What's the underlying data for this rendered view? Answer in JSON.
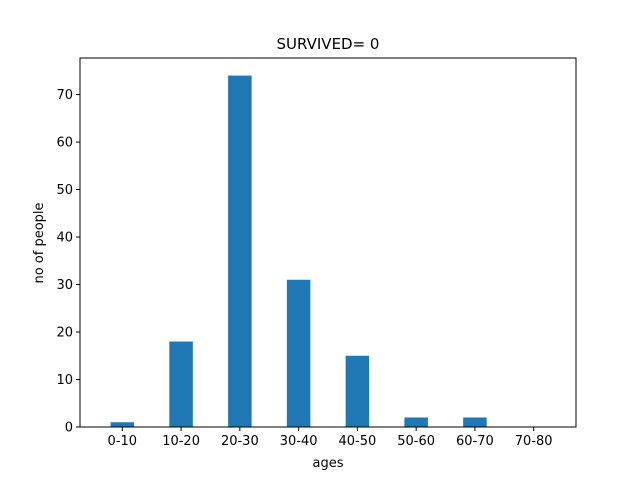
{
  "chart_data": {
    "type": "bar",
    "title": "SURVIVED= 0",
    "xlabel": "ages",
    "ylabel": "no of people",
    "categories": [
      "0-10",
      "10-20",
      "20-30",
      "30-40",
      "40-50",
      "50-60",
      "60-70",
      "70-80"
    ],
    "values": [
      1,
      18,
      74,
      31,
      15,
      2,
      2,
      0
    ],
    "ylim": [
      0,
      77.7
    ],
    "yticks": [
      0,
      10,
      20,
      30,
      40,
      50,
      60,
      70
    ],
    "grid": false,
    "bar_color": "#1f77b4"
  }
}
